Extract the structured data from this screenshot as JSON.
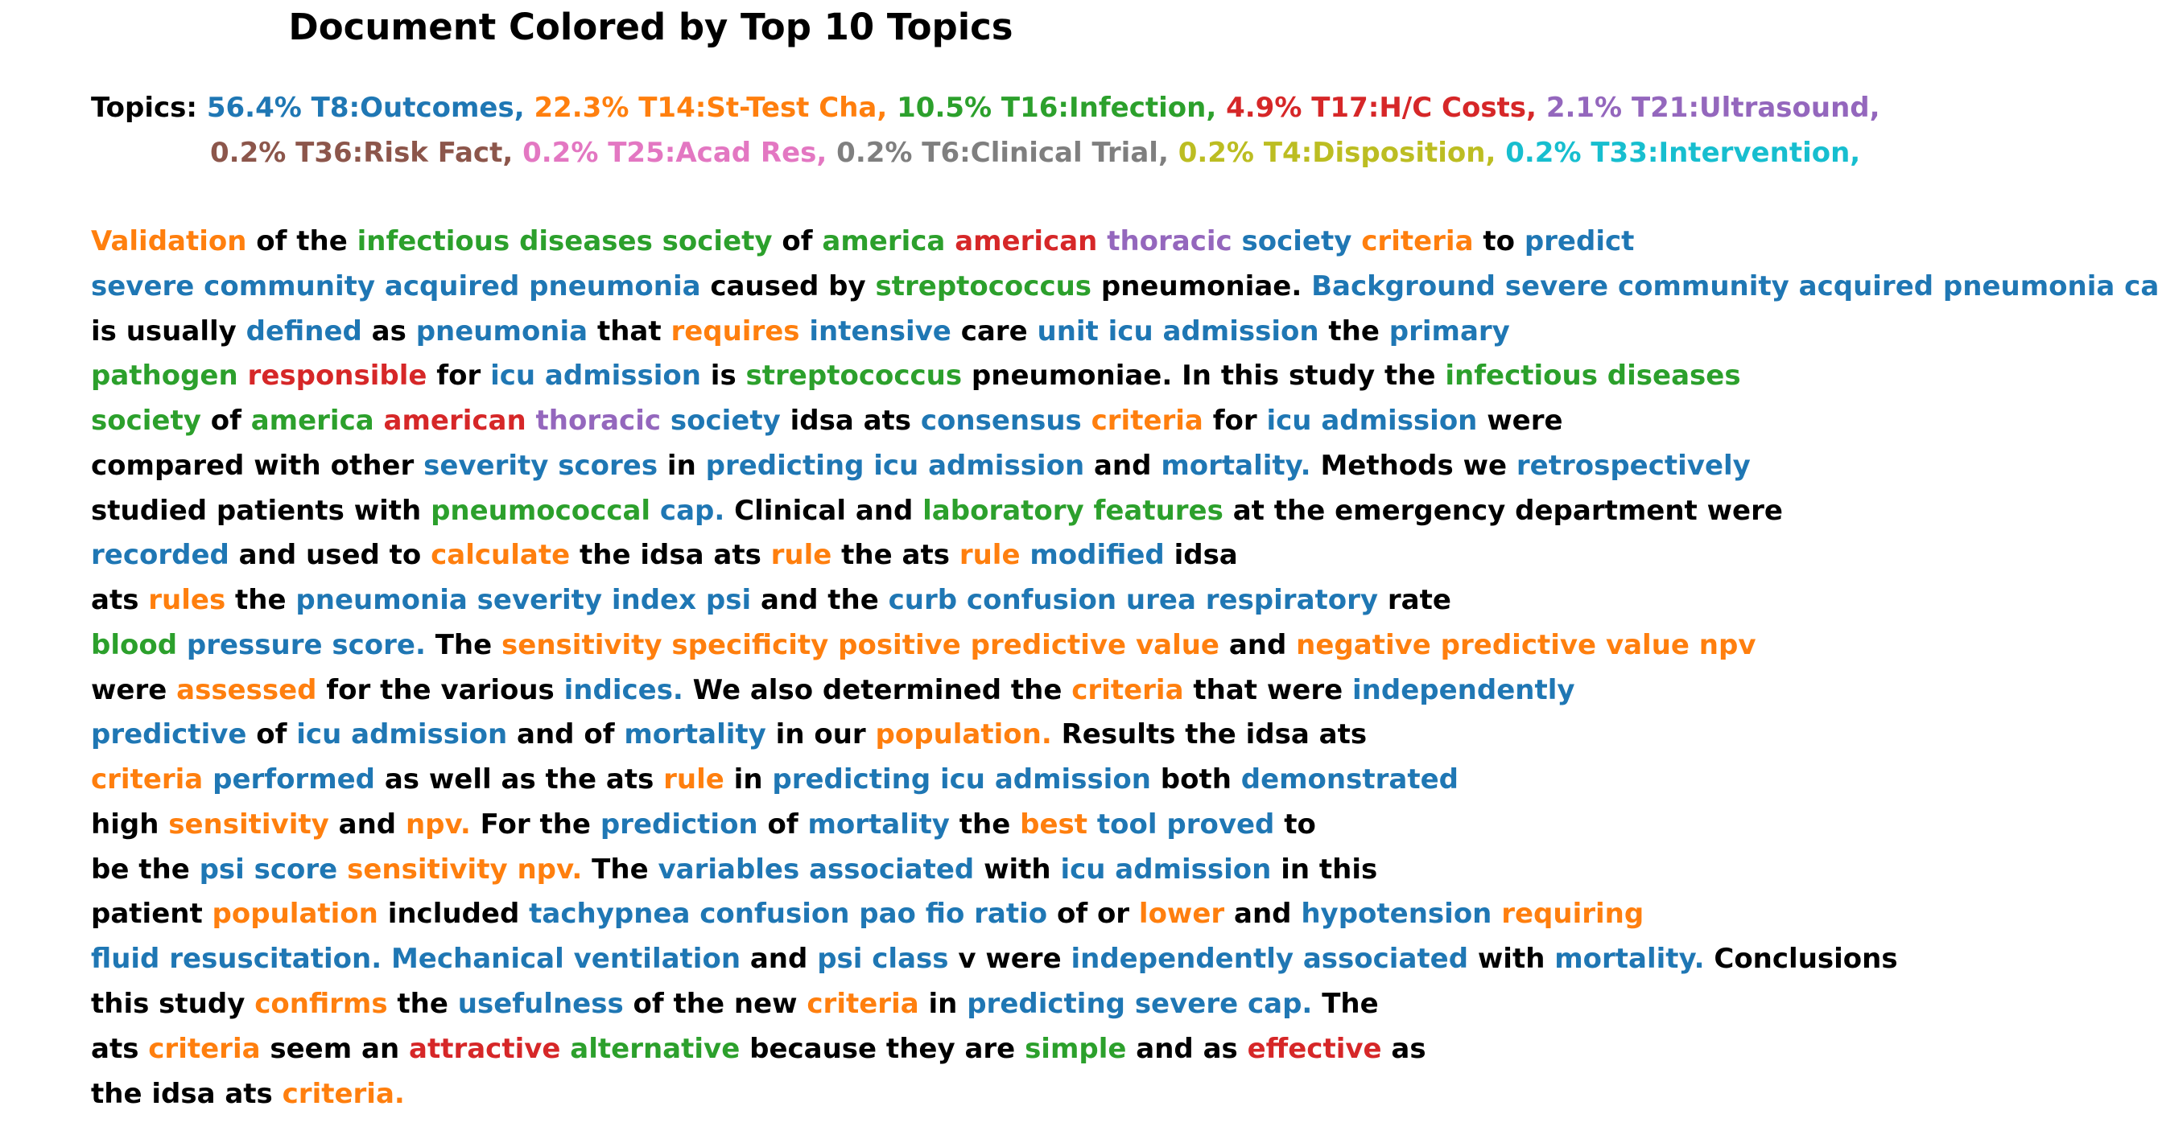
{
  "title": "Document Colored by Top 10 Topics",
  "colors": {
    "k": "#000000",
    "b": "#1f77b4",
    "o": "#ff7f0e",
    "g": "#2ca02c",
    "r": "#d62728",
    "p": "#9467bd",
    "br": "#8c564b",
    "pk": "#e377c2",
    "gy": "#7f7f7f",
    "ol": "#bcbd22",
    "c": "#17becf"
  },
  "lines": [
    [
      [
        "k",
        "Topics: "
      ],
      [
        "b",
        "56.4% T8:Outcomes, "
      ],
      [
        "o",
        "22.3% T14:St-Test Cha, "
      ],
      [
        "g",
        "10.5% T16:Infection, "
      ],
      [
        "r",
        "4.9% T17:H/C Costs, "
      ],
      [
        "p",
        "2.1% T21:Ultrasound,"
      ]
    ],
    [
      [
        "br",
        "0.2% T36:Risk Fact, "
      ],
      [
        "pk",
        "0.2% T25:Acad Res, "
      ],
      [
        "gy",
        "0.2% T6:Clinical Trial, "
      ],
      [
        "ol",
        "0.2% T4:Disposition, "
      ],
      [
        "c",
        "0.2% T33:Intervention,"
      ]
    ],
    [
      [
        "o",
        "Validation"
      ],
      [
        "k",
        " of the "
      ],
      [
        "g",
        "infectious diseases society"
      ],
      [
        "k",
        " of "
      ],
      [
        "g",
        "america"
      ],
      [
        "k",
        " "
      ],
      [
        "r",
        "american"
      ],
      [
        "k",
        " "
      ],
      [
        "p",
        "thoracic"
      ],
      [
        "k",
        " "
      ],
      [
        "b",
        "society"
      ],
      [
        "k",
        " "
      ],
      [
        "o",
        "criteria"
      ],
      [
        "k",
        " to "
      ],
      [
        "b",
        "predict"
      ]
    ],
    [
      [
        "b",
        "severe community acquired pneumonia"
      ],
      [
        "k",
        " caused by "
      ],
      [
        "g",
        "streptococcus"
      ],
      [
        "k",
        " pneumoniae. "
      ],
      [
        "b",
        "Background severe community acquired pneumonia cap"
      ]
    ],
    [
      [
        "k",
        "is usually "
      ],
      [
        "b",
        "defined"
      ],
      [
        "k",
        " as "
      ],
      [
        "b",
        "pneumonia"
      ],
      [
        "k",
        " that "
      ],
      [
        "o",
        "requires"
      ],
      [
        "k",
        " "
      ],
      [
        "b",
        "intensive"
      ],
      [
        "k",
        " care "
      ],
      [
        "b",
        "unit icu admission"
      ],
      [
        "k",
        " the "
      ],
      [
        "b",
        "primary"
      ]
    ],
    [
      [
        "g",
        "pathogen"
      ],
      [
        "k",
        " "
      ],
      [
        "r",
        "responsible"
      ],
      [
        "k",
        " for "
      ],
      [
        "b",
        "icu admission"
      ],
      [
        "k",
        " is "
      ],
      [
        "g",
        "streptococcus"
      ],
      [
        "k",
        " pneumoniae. In this study the "
      ],
      [
        "g",
        "infectious diseases"
      ]
    ],
    [
      [
        "g",
        "society"
      ],
      [
        "k",
        " of "
      ],
      [
        "g",
        "america"
      ],
      [
        "k",
        " "
      ],
      [
        "r",
        "american"
      ],
      [
        "k",
        " "
      ],
      [
        "p",
        "thoracic"
      ],
      [
        "k",
        " "
      ],
      [
        "b",
        "society"
      ],
      [
        "k",
        " idsa ats "
      ],
      [
        "b",
        "consensus"
      ],
      [
        "k",
        " "
      ],
      [
        "o",
        "criteria"
      ],
      [
        "k",
        " for "
      ],
      [
        "b",
        "icu admission"
      ],
      [
        "k",
        " were"
      ]
    ],
    [
      [
        "k",
        "compared with other "
      ],
      [
        "b",
        "severity scores"
      ],
      [
        "k",
        " in "
      ],
      [
        "b",
        "predicting icu admission"
      ],
      [
        "k",
        " and "
      ],
      [
        "b",
        "mortality."
      ],
      [
        "k",
        " Methods we "
      ],
      [
        "b",
        "retrospectively"
      ]
    ],
    [
      [
        "k",
        "studied patients with "
      ],
      [
        "g",
        "pneumococcal"
      ],
      [
        "k",
        " "
      ],
      [
        "b",
        "cap."
      ],
      [
        "k",
        " Clinical and "
      ],
      [
        "g",
        "laboratory features"
      ],
      [
        "k",
        " at the emergency department were"
      ]
    ],
    [
      [
        "b",
        "recorded"
      ],
      [
        "k",
        " and used to "
      ],
      [
        "o",
        "calculate"
      ],
      [
        "k",
        " the idsa ats "
      ],
      [
        "o",
        "rule"
      ],
      [
        "k",
        " the ats "
      ],
      [
        "o",
        "rule"
      ],
      [
        "k",
        " "
      ],
      [
        "b",
        "modified"
      ],
      [
        "k",
        " idsa"
      ]
    ],
    [
      [
        "k",
        "ats "
      ],
      [
        "o",
        "rules"
      ],
      [
        "k",
        " the "
      ],
      [
        "b",
        "pneumonia severity index psi"
      ],
      [
        "k",
        " and the "
      ],
      [
        "b",
        "curb confusion urea respiratory"
      ],
      [
        "k",
        " rate"
      ]
    ],
    [
      [
        "g",
        "blood"
      ],
      [
        "k",
        " "
      ],
      [
        "b",
        "pressure score."
      ],
      [
        "k",
        " The "
      ],
      [
        "o",
        "sensitivity specificity positive predictive value"
      ],
      [
        "k",
        " and "
      ],
      [
        "o",
        "negative predictive value npv"
      ]
    ],
    [
      [
        "k",
        "were "
      ],
      [
        "o",
        "assessed"
      ],
      [
        "k",
        " for the various "
      ],
      [
        "b",
        "indices."
      ],
      [
        "k",
        " We also determined the "
      ],
      [
        "o",
        "criteria"
      ],
      [
        "k",
        " that were "
      ],
      [
        "b",
        "independently"
      ]
    ],
    [
      [
        "b",
        "predictive"
      ],
      [
        "k",
        " of "
      ],
      [
        "b",
        "icu admission"
      ],
      [
        "k",
        " and of "
      ],
      [
        "b",
        "mortality"
      ],
      [
        "k",
        " in our "
      ],
      [
        "o",
        "population."
      ],
      [
        "k",
        " Results the idsa ats"
      ]
    ],
    [
      [
        "o",
        "criteria"
      ],
      [
        "k",
        " "
      ],
      [
        "b",
        "performed"
      ],
      [
        "k",
        " as well as the ats "
      ],
      [
        "o",
        "rule"
      ],
      [
        "k",
        " in "
      ],
      [
        "b",
        "predicting icu admission"
      ],
      [
        "k",
        " both "
      ],
      [
        "b",
        "demonstrated"
      ]
    ],
    [
      [
        "k",
        "high "
      ],
      [
        "o",
        "sensitivity"
      ],
      [
        "k",
        " and "
      ],
      [
        "o",
        "npv."
      ],
      [
        "k",
        " For the "
      ],
      [
        "b",
        "prediction"
      ],
      [
        "k",
        " of "
      ],
      [
        "b",
        "mortality"
      ],
      [
        "k",
        " the "
      ],
      [
        "o",
        "best"
      ],
      [
        "k",
        " "
      ],
      [
        "b",
        "tool proved"
      ],
      [
        "k",
        " to"
      ]
    ],
    [
      [
        "k",
        "be the "
      ],
      [
        "b",
        "psi score"
      ],
      [
        "k",
        " "
      ],
      [
        "o",
        "sensitivity npv."
      ],
      [
        "k",
        " The "
      ],
      [
        "b",
        "variables associated"
      ],
      [
        "k",
        " with "
      ],
      [
        "b",
        "icu admission"
      ],
      [
        "k",
        " in this"
      ]
    ],
    [
      [
        "k",
        "patient "
      ],
      [
        "o",
        "population"
      ],
      [
        "k",
        " included "
      ],
      [
        "b",
        "tachypnea confusion pao fio ratio"
      ],
      [
        "k",
        " of or "
      ],
      [
        "o",
        "lower"
      ],
      [
        "k",
        " and "
      ],
      [
        "b",
        "hypotension"
      ],
      [
        "k",
        " "
      ],
      [
        "o",
        "requiring"
      ]
    ],
    [
      [
        "b",
        "fluid resuscitation. Mechanical ventilation"
      ],
      [
        "k",
        " and "
      ],
      [
        "b",
        "psi class"
      ],
      [
        "k",
        " v were "
      ],
      [
        "b",
        "independently associated"
      ],
      [
        "k",
        " with "
      ],
      [
        "b",
        "mortality."
      ],
      [
        "k",
        " Conclusions"
      ]
    ],
    [
      [
        "k",
        "this study "
      ],
      [
        "o",
        "confirms"
      ],
      [
        "k",
        " the "
      ],
      [
        "b",
        "usefulness"
      ],
      [
        "k",
        " of the new "
      ],
      [
        "o",
        "criteria"
      ],
      [
        "k",
        " in "
      ],
      [
        "b",
        "predicting severe cap."
      ],
      [
        "k",
        " The"
      ]
    ],
    [
      [
        "k",
        "ats "
      ],
      [
        "o",
        "criteria"
      ],
      [
        "k",
        " seem an "
      ],
      [
        "r",
        "attractive"
      ],
      [
        "k",
        " "
      ],
      [
        "g",
        "alternative"
      ],
      [
        "k",
        " because they are "
      ],
      [
        "g",
        "simple"
      ],
      [
        "k",
        " and as "
      ],
      [
        "r",
        "effective"
      ],
      [
        "k",
        " as"
      ]
    ],
    [
      [
        "k",
        "the idsa ats "
      ],
      [
        "o",
        "criteria."
      ]
    ]
  ]
}
